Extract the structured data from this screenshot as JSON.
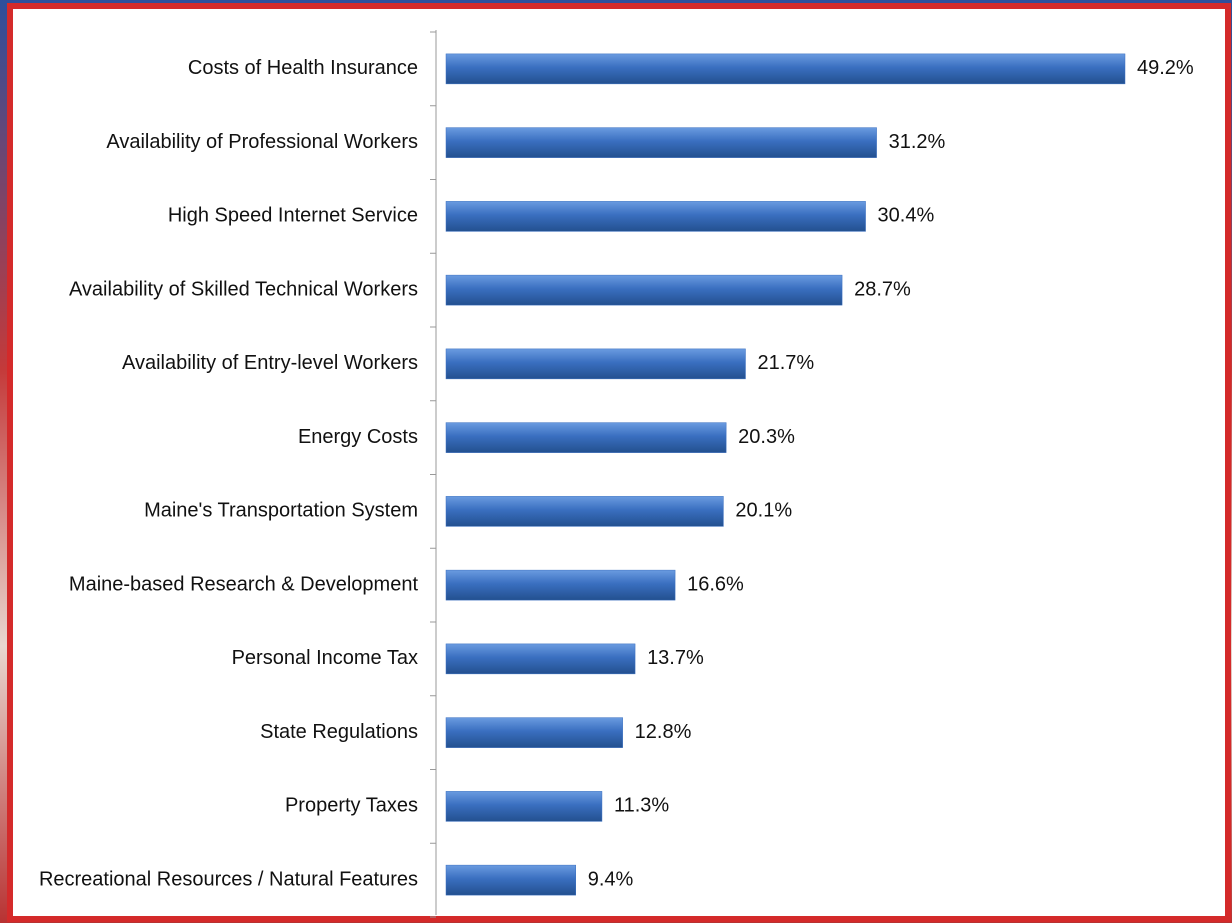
{
  "chart_data": {
    "type": "bar",
    "orientation": "horizontal",
    "color": "#3a6fc0",
    "categories": [
      "Costs of Health Insurance",
      "Availability of Professional Workers",
      "High Speed Internet Service",
      "Availability of Skilled Technical Workers",
      "Availability of Entry-level Workers",
      "Energy Costs",
      "Maine's Transportation System",
      "Maine-based Research & Development",
      "Personal Income Tax",
      "State Regulations",
      "Property Taxes",
      "Recreational Resources / Natural Features"
    ],
    "values": [
      49.2,
      31.2,
      30.4,
      28.7,
      21.7,
      20.3,
      20.1,
      16.6,
      13.7,
      12.8,
      11.3,
      9.4
    ],
    "value_labels": [
      "49.2%",
      "31.2%",
      "30.4%",
      "28.7%",
      "21.7%",
      "20.3%",
      "20.1%",
      "16.6%",
      "13.7%",
      "12.8%",
      "11.3%",
      "9.4%"
    ]
  }
}
